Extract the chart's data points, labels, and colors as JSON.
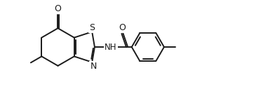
{
  "bg_color": "#ffffff",
  "line_color": "#1a1a1a",
  "line_width": 1.4,
  "font_size": 8.5,
  "figsize": [
    3.92,
    1.34
  ],
  "dpi": 100,
  "xlim": [
    0,
    10.5
  ],
  "ylim": [
    0,
    3.5
  ]
}
